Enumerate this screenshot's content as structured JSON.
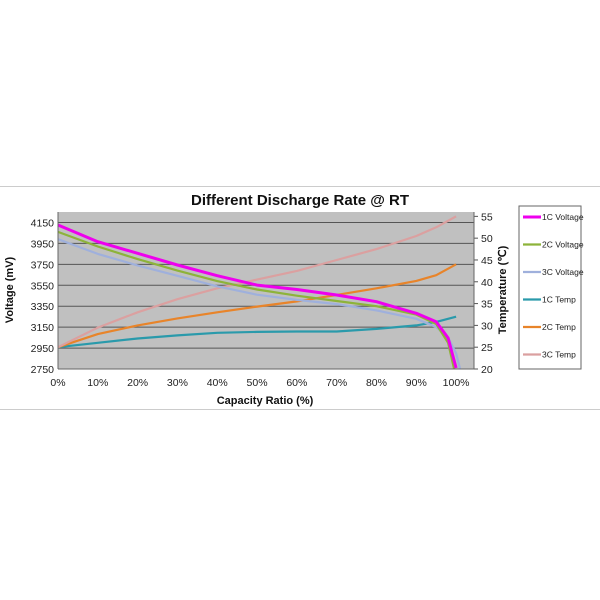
{
  "chart_data": {
    "type": "line",
    "title": "Different Discharge Rate @ RT",
    "xlabel": "Capacity Ratio (%)",
    "ylabel": "Voltage (mV)",
    "y2label": "Temperature (℃)",
    "xlim": [
      0,
      104.5
    ],
    "ylim": [
      2750,
      4250
    ],
    "y2lim": [
      20,
      56
    ],
    "xticks": [
      "0%",
      "10%",
      "20%",
      "30%",
      "40%",
      "50%",
      "60%",
      "70%",
      "80%",
      "90%",
      "100%"
    ],
    "yticks": [
      2750,
      2950,
      3150,
      3350,
      3550,
      3750,
      3950,
      4150
    ],
    "y2ticks": [
      20,
      25,
      30,
      35,
      40,
      45,
      50,
      55
    ],
    "grid": true,
    "legend": "right",
    "plot_background": "#c0c0c0",
    "series": [
      {
        "name": "1C  Voltage",
        "axis": "left",
        "color": "#ee00ee",
        "width": 3,
        "x": [
          0,
          10,
          20,
          30,
          40,
          50,
          60,
          70,
          80,
          90,
          95,
          98,
          100
        ],
        "y": [
          4126,
          3966,
          3855,
          3744,
          3641,
          3552,
          3510,
          3457,
          3393,
          3282,
          3202,
          3046,
          2760
        ]
      },
      {
        "name": "2C  Voltage",
        "axis": "left",
        "color": "#8db33a",
        "width": 2.2,
        "x": [
          0,
          10,
          20,
          30,
          40,
          50,
          60,
          70,
          80,
          90,
          95,
          98,
          99.5
        ],
        "y": [
          4060,
          3920,
          3800,
          3690,
          3590,
          3510,
          3450,
          3400,
          3350,
          3270,
          3180,
          3000,
          2750
        ]
      },
      {
        "name": "3C  Voltage",
        "axis": "left",
        "color": "#9fb0dc",
        "width": 2.2,
        "x": [
          0,
          10,
          20,
          30,
          40,
          50,
          60,
          70,
          80,
          90,
          95,
          98,
          100,
          101
        ],
        "y": [
          3990,
          3850,
          3740,
          3640,
          3540,
          3460,
          3410,
          3370,
          3310,
          3230,
          3150,
          3050,
          2900,
          2750
        ]
      },
      {
        "name": "1C Temp",
        "axis": "right",
        "color": "#2a9aab",
        "width": 2.2,
        "x": [
          0,
          10,
          20,
          30,
          40,
          50,
          60,
          70,
          80,
          90,
          95,
          100
        ],
        "y": [
          25,
          26,
          27,
          27.7,
          28.3,
          28.5,
          28.6,
          28.6,
          29.2,
          30,
          30.8,
          32
        ]
      },
      {
        "name": "2C Temp",
        "axis": "right",
        "color": "#e8842a",
        "width": 2.2,
        "x": [
          0,
          10,
          20,
          30,
          40,
          50,
          60,
          70,
          80,
          90,
          95,
          100
        ],
        "y": [
          25,
          28,
          30,
          31.6,
          33,
          34.3,
          35.5,
          37,
          38.5,
          40.2,
          41.5,
          44
        ]
      },
      {
        "name": "3C Temp",
        "axis": "right",
        "color": "#dba0a0",
        "width": 2.2,
        "x": [
          0,
          10,
          20,
          30,
          40,
          50,
          60,
          70,
          80,
          90,
          95,
          100
        ],
        "y": [
          25,
          29.5,
          33,
          36,
          38.5,
          40.5,
          42.5,
          45,
          47.5,
          50.5,
          52.5,
          55
        ]
      }
    ]
  }
}
